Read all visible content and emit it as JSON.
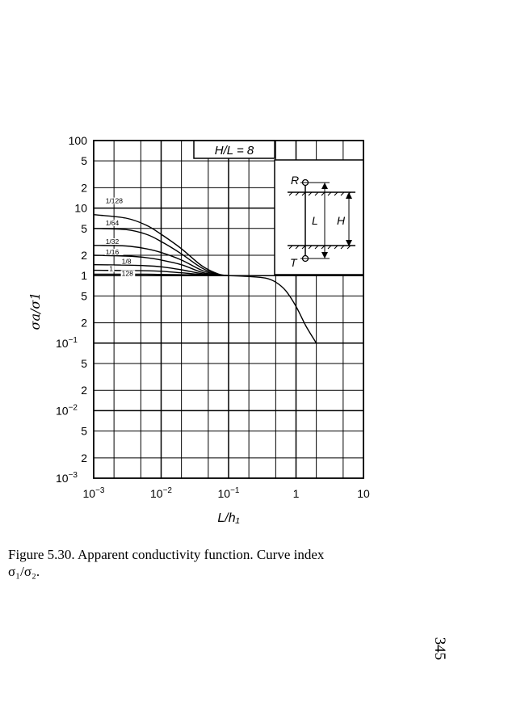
{
  "chart_data": {
    "type": "line",
    "title": "H/L = 8",
    "xlabel": "L/h₁",
    "ylabel": "σa/σ1",
    "x_scale": "log",
    "y_scale": "log",
    "xlim": [
      0.001,
      10
    ],
    "ylim": [
      0.001,
      100
    ],
    "grid": true,
    "x_ticks": [
      {
        "value": 0.001,
        "base": "10",
        "exp": "−3"
      },
      {
        "value": 0.01,
        "base": "10",
        "exp": "−2"
      },
      {
        "value": 0.1,
        "base": "10",
        "exp": "−1"
      },
      {
        "value": 1,
        "base": "1",
        "exp": ""
      },
      {
        "value": 10,
        "base": "10",
        "exp": ""
      }
    ],
    "y_ticks": [
      {
        "value": 100,
        "base": "100",
        "exp": ""
      },
      {
        "value": 50,
        "base": "5",
        "exp": ""
      },
      {
        "value": 20,
        "base": "2",
        "exp": ""
      },
      {
        "value": 10,
        "base": "10",
        "exp": ""
      },
      {
        "value": 5,
        "base": "5",
        "exp": ""
      },
      {
        "value": 2,
        "base": "2",
        "exp": ""
      },
      {
        "value": 1,
        "base": "1",
        "exp": ""
      },
      {
        "value": 0.5,
        "base": "5",
        "exp": ""
      },
      {
        "value": 0.2,
        "base": "2",
        "exp": ""
      },
      {
        "value": 0.1,
        "base": "10",
        "exp": "−1"
      },
      {
        "value": 0.05,
        "base": "5",
        "exp": ""
      },
      {
        "value": 0.02,
        "base": "2",
        "exp": ""
      },
      {
        "value": 0.01,
        "base": "10",
        "exp": "−2"
      },
      {
        "value": 0.005,
        "base": "5",
        "exp": ""
      },
      {
        "value": 0.002,
        "base": "2",
        "exp": ""
      },
      {
        "value": 0.001,
        "base": "10",
        "exp": "−3"
      }
    ],
    "series": [
      {
        "name": "1/128",
        "x": [
          0.001,
          0.003,
          0.006,
          0.01,
          0.02,
          0.04,
          0.07,
          0.1
        ],
        "y": [
          8,
          7.1,
          5.6,
          4.1,
          2.5,
          1.4,
          1.06,
          1.0
        ]
      },
      {
        "name": "1/64",
        "x": [
          0.001,
          0.003,
          0.006,
          0.01,
          0.02,
          0.04,
          0.07,
          0.1
        ],
        "y": [
          5,
          4.8,
          4.1,
          3.2,
          2.1,
          1.3,
          1.04,
          1.0
        ]
      },
      {
        "name": "1/32",
        "x": [
          0.001,
          0.003,
          0.006,
          0.01,
          0.02,
          0.04,
          0.07,
          0.1
        ],
        "y": [
          2.8,
          2.75,
          2.5,
          2.2,
          1.7,
          1.2,
          1.03,
          1.0
        ]
      },
      {
        "name": "1/16",
        "x": [
          0.001,
          0.003,
          0.006,
          0.01,
          0.02,
          0.04,
          0.07,
          0.1
        ],
        "y": [
          2.0,
          1.95,
          1.85,
          1.7,
          1.45,
          1.12,
          1.02,
          1.0
        ]
      },
      {
        "name": "1/8",
        "x": [
          0.001,
          0.003,
          0.006,
          0.01,
          0.02,
          0.04,
          0.07,
          0.1
        ],
        "y": [
          1.45,
          1.43,
          1.4,
          1.35,
          1.22,
          1.07,
          1.01,
          1.0
        ]
      },
      {
        "name": "1",
        "x": [
          0.001,
          0.003,
          0.006,
          0.01,
          0.02,
          0.04,
          0.07,
          0.1
        ],
        "y": [
          1.2,
          1.19,
          1.18,
          1.16,
          1.1,
          1.04,
          1.01,
          1.0
        ]
      },
      {
        "name": "128",
        "x": [
          0.001,
          0.003,
          0.006,
          0.01,
          0.02,
          0.04,
          0.07,
          0.1
        ],
        "y": [
          1.05,
          1.05,
          1.05,
          1.04,
          1.03,
          1.02,
          1.0,
          1.0
        ]
      },
      {
        "name": "",
        "x": [
          0.1,
          0.2,
          0.35,
          0.5,
          0.7,
          1.0,
          1.4,
          2.0
        ],
        "y": [
          1.0,
          0.97,
          0.92,
          0.8,
          0.6,
          0.35,
          0.18,
          0.1
        ]
      }
    ],
    "curve_index_labels": [
      "1/128",
      "1/64",
      "1/32",
      "1/16",
      "1/8",
      "1",
      "128"
    ]
  },
  "inset": {
    "label_r": "R",
    "label_t": "T",
    "label_l": "L",
    "label_h": "H"
  },
  "caption": {
    "line1": "Figure 5.30.  Apparent conductivity function.  Curve index",
    "line2": "σ₁/σ₂."
  },
  "page_number": "345"
}
